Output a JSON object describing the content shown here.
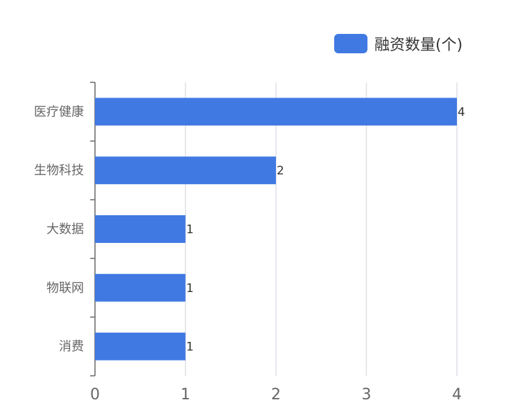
{
  "colors": {
    "bar": "#4179e3",
    "grid": "#dde0e6",
    "axis": "#666666",
    "tick_text": "#666666",
    "value_text": "#333333"
  },
  "chart_data": {
    "type": "bar",
    "orientation": "horizontal",
    "categories": [
      "医疗健康",
      "生物科技",
      "大数据",
      "物联网",
      "消费"
    ],
    "series": [
      {
        "name": "融资数量(个)",
        "values": [
          4,
          2,
          1,
          1,
          1
        ]
      }
    ],
    "xticks": [
      "0",
      "1",
      "2",
      "3",
      "4"
    ],
    "xlim": [
      0,
      4
    ],
    "grid": true,
    "legend_position": "top-right",
    "data_labels": true
  }
}
